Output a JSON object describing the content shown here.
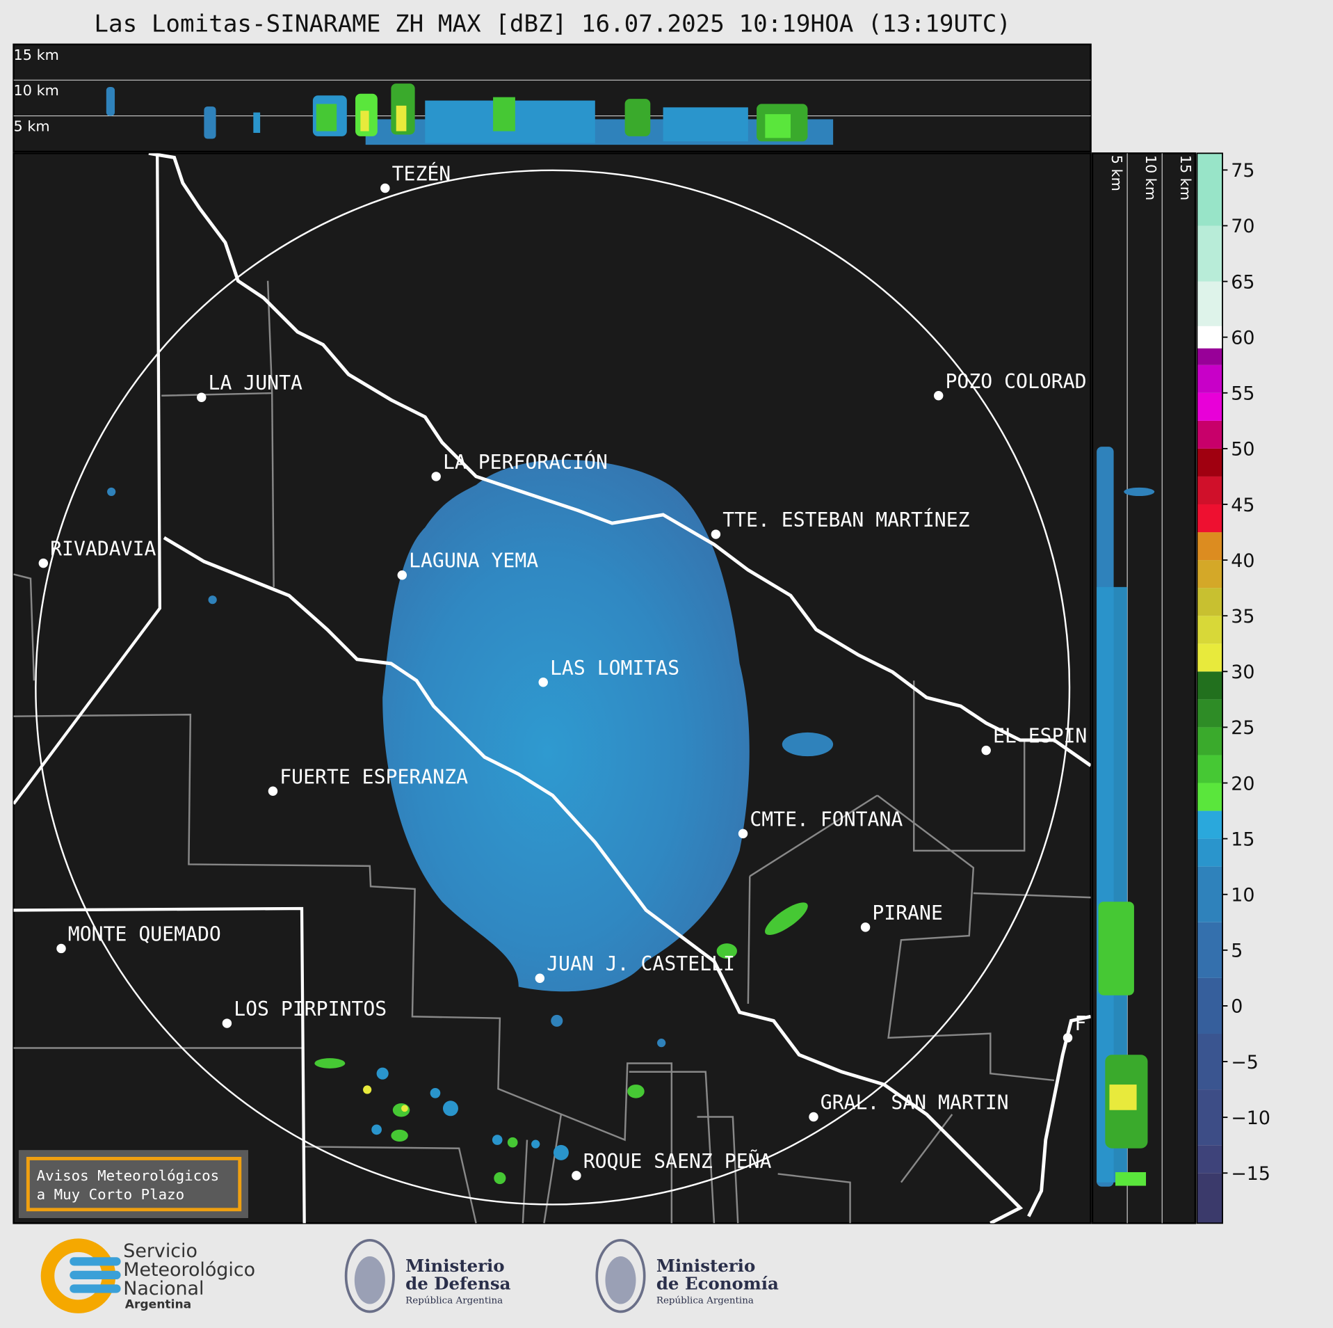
{
  "title": "Las Lomitas-SINARAME ZH MAX [dBZ] 16.07.2025 10:19HOA (13:19UTC)",
  "height_labels": [
    "15 km",
    "10 km",
    "5 km"
  ],
  "cities": [
    "TEZÉN",
    "LA JUNTA",
    "POZO COLORAD",
    "LA PERFORACIÓN",
    "TTE. ESTEBAN MARTÍNEZ",
    "RIVADAVIA",
    "LAGUNA YEMA",
    "LAS LOMITAS",
    "FUERTE ESPERANZA",
    "CMTE. FONTANA",
    "EL ESPIN",
    "PIRANE",
    "MONTE QUEMADO",
    "JUAN J. CASTELLI",
    "LOS PIRPINTOS",
    "F",
    "GRAL. SAN MARTIN",
    "ROQUE SAENZ PEÑA"
  ],
  "notice": [
    "Avisos Meteorológicos",
    "a Muy Corto Plazo"
  ],
  "colorbar": {
    "lim": [
      -19.5,
      76.5
    ],
    "ticks": [
      {
        "value": -15,
        "label": "−15"
      },
      {
        "value": -10,
        "label": "−10"
      },
      {
        "value": -5,
        "label": "−5"
      },
      0,
      5,
      10,
      15,
      20,
      25,
      30,
      35,
      40,
      45,
      50,
      55,
      60,
      65,
      70,
      75
    ],
    "stops": [
      {
        "from": -19.5,
        "color": "#3b3a6b"
      },
      {
        "from": -15,
        "color": "#3e437a"
      },
      {
        "from": -12.5,
        "color": "#3d4d86"
      },
      {
        "from": -7.5,
        "color": "#3a5590"
      },
      {
        "from": -2.5,
        "color": "#365f9c"
      },
      {
        "from": 2.5,
        "color": "#3470ad"
      },
      {
        "from": 7.5,
        "color": "#2f82bb"
      },
      {
        "from": 12.5,
        "color": "#2a95cc"
      },
      {
        "from": 15,
        "color": "#2aa8dc"
      },
      {
        "from": 17.5,
        "color": "#5ae63c"
      },
      {
        "from": 20,
        "color": "#46c834"
      },
      {
        "from": 22.5,
        "color": "#3aaa2c"
      },
      {
        "from": 25,
        "color": "#2e8c26"
      },
      {
        "from": 27.5,
        "color": "#22701e"
      },
      {
        "from": 30,
        "color": "#e8ea3c"
      },
      {
        "from": 32.5,
        "color": "#d8d838"
      },
      {
        "from": 35,
        "color": "#c8c030"
      },
      {
        "from": 37.5,
        "color": "#d4a828"
      },
      {
        "from": 40,
        "color": "#dc8c20"
      },
      {
        "from": 42.5,
        "color": "#ee1030"
      },
      {
        "from": 45,
        "color": "#d0102a"
      },
      {
        "from": 47.5,
        "color": "#a00010"
      },
      {
        "from": 50,
        "color": "#c8006a"
      },
      {
        "from": 52.5,
        "color": "#e800d8"
      },
      {
        "from": 55,
        "color": "#c800c8"
      },
      {
        "from": 57.5,
        "color": "#980098"
      },
      {
        "from": 59,
        "color": "#ffffff"
      },
      {
        "from": 61,
        "color": "#def3ea"
      },
      {
        "from": 65,
        "color": "#b8ecd8"
      },
      {
        "from": 70,
        "color": "#98e4c8"
      }
    ]
  },
  "logos": {
    "smn": [
      "Servicio",
      "Meteorológico",
      "Nacional",
      "Argentina"
    ],
    "defensa": [
      "Ministerio",
      "de Defensa",
      "República Argentina"
    ],
    "economia": [
      "Ministerio",
      "de Economía",
      "República Argentina"
    ]
  }
}
